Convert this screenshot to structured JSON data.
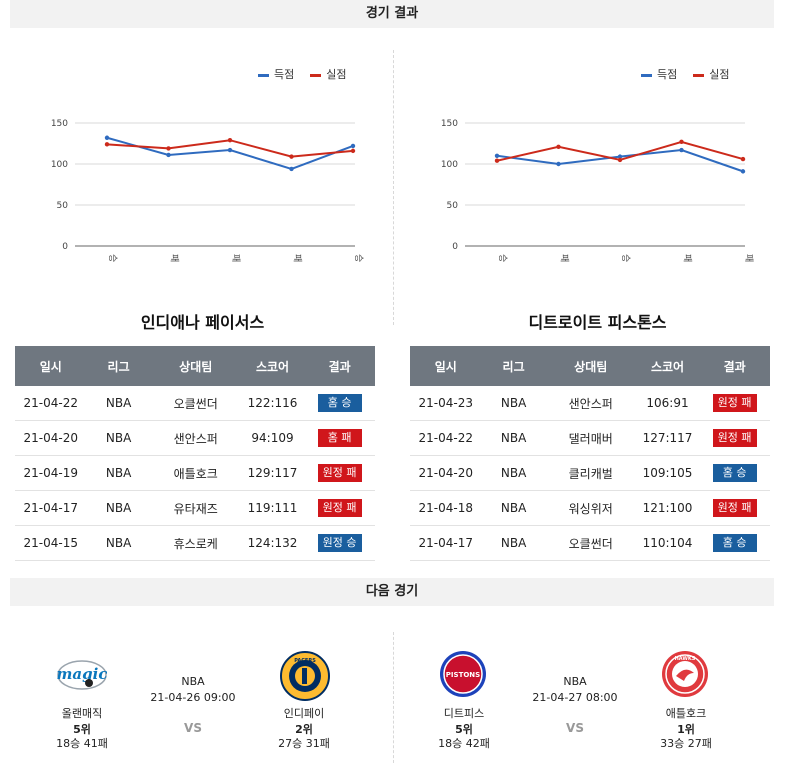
{
  "header": {
    "results_title": "경기 결과",
    "next_title": "다음 경기"
  },
  "legend": {
    "score": "득점",
    "conceded": "실점",
    "score_color": "#2f6bbf",
    "conceded_color": "#cc2a1b"
  },
  "chart_data": [
    {
      "type": "line",
      "categories": [
        "승",
        "패",
        "패",
        "패",
        "승"
      ],
      "ylim": [
        0,
        150
      ],
      "yticks": [
        0,
        50,
        100,
        150
      ],
      "grid": true,
      "legend_position": "top-right",
      "series": [
        {
          "name": "득점",
          "color": "#2f6bbf",
          "values": [
            132,
            111,
            117,
            94,
            122
          ]
        },
        {
          "name": "실점",
          "color": "#cc2a1b",
          "values": [
            124,
            119,
            129,
            109,
            116
          ]
        }
      ]
    },
    {
      "type": "line",
      "categories": [
        "승",
        "패",
        "승",
        "패",
        "패"
      ],
      "ylim": [
        0,
        150
      ],
      "yticks": [
        0,
        50,
        100,
        150
      ],
      "grid": true,
      "legend_position": "top-right",
      "series": [
        {
          "name": "득점",
          "color": "#2f6bbf",
          "values": [
            110,
            100,
            109,
            117,
            91
          ]
        },
        {
          "name": "실점",
          "color": "#cc2a1b",
          "values": [
            104,
            121,
            105,
            127,
            106
          ]
        }
      ]
    }
  ],
  "left_team": {
    "title": "인디애나 페이서스",
    "columns": [
      "일시",
      "리그",
      "상대팀",
      "스코어",
      "결과"
    ],
    "rows": [
      {
        "date": "21-04-22",
        "league": "NBA",
        "opponent": "오클썬더",
        "score": "122:116",
        "result": "홈 승",
        "win": true
      },
      {
        "date": "21-04-20",
        "league": "NBA",
        "opponent": "샌안스퍼",
        "score": "94:109",
        "result": "홈 패",
        "win": false
      },
      {
        "date": "21-04-19",
        "league": "NBA",
        "opponent": "애틀호크",
        "score": "129:117",
        "result": "원정 패",
        "win": false
      },
      {
        "date": "21-04-17",
        "league": "NBA",
        "opponent": "유타재즈",
        "score": "119:111",
        "result": "원정 패",
        "win": false
      },
      {
        "date": "21-04-15",
        "league": "NBA",
        "opponent": "휴스로케",
        "score": "124:132",
        "result": "원정 승",
        "win": true
      }
    ]
  },
  "right_team": {
    "title": "디트로이트 피스톤스",
    "columns": [
      "일시",
      "리그",
      "상대팀",
      "스코어",
      "결과"
    ],
    "rows": [
      {
        "date": "21-04-23",
        "league": "NBA",
        "opponent": "샌안스퍼",
        "score": "106:91",
        "result": "원정 패",
        "win": false
      },
      {
        "date": "21-04-22",
        "league": "NBA",
        "opponent": "댈러매버",
        "score": "127:117",
        "result": "원정 패",
        "win": false
      },
      {
        "date": "21-04-20",
        "league": "NBA",
        "opponent": "클리캐벌",
        "score": "109:105",
        "result": "홈 승",
        "win": true
      },
      {
        "date": "21-04-18",
        "league": "NBA",
        "opponent": "워싱위저",
        "score": "121:100",
        "result": "원정 패",
        "win": false
      },
      {
        "date": "21-04-17",
        "league": "NBA",
        "opponent": "오클썬더",
        "score": "110:104",
        "result": "홈 승",
        "win": true
      }
    ]
  },
  "next_games": [
    {
      "league": "NBA",
      "datetime": "21-04-26 09:00",
      "vs": "VS",
      "home": {
        "name": "올랜매직",
        "rank": "5위",
        "record": "18승 41패",
        "logo_text": "magic",
        "color": "#0b77bd"
      },
      "away": {
        "name": "인디페이",
        "rank": "2위",
        "record": "27승 31패",
        "logo_text": "PACERS",
        "color": "#002d62",
        "accent": "#fdbb30"
      }
    },
    {
      "league": "NBA",
      "datetime": "21-04-27 08:00",
      "vs": "VS",
      "home": {
        "name": "디트피스",
        "rank": "5위",
        "record": "18승 42패",
        "logo_text": "PISTONS",
        "color": "#c8102e",
        "accent": "#1d42ba"
      },
      "away": {
        "name": "애틀호크",
        "rank": "1위",
        "record": "33승 27패",
        "logo_text": "HAWKS",
        "color": "#e03a3e"
      }
    }
  ]
}
